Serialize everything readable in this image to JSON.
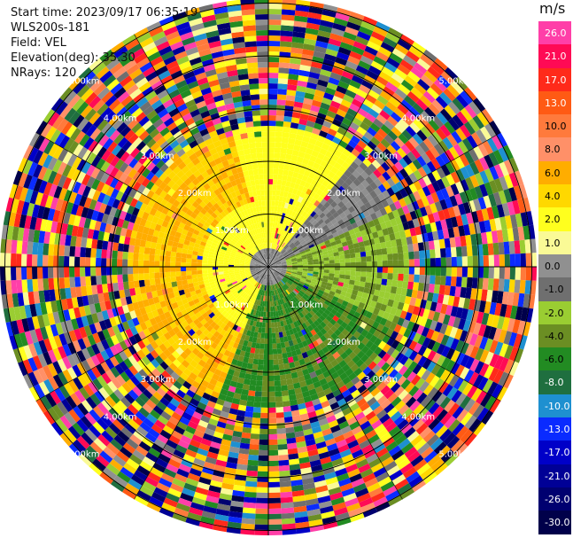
{
  "header": {
    "start_time": "Start time: 2023/09/17 06:35:19",
    "instrument": "WLS200s-181",
    "field": "Field: VEL",
    "elevation": "Elevation(deg): 35.30",
    "nrays": "NRays: 120"
  },
  "colorbar": {
    "unit": "m/s",
    "levels": [
      {
        "label": "26.0",
        "color": "#ff3fa8"
      },
      {
        "label": "21.0",
        "color": "#ff0a55"
      },
      {
        "label": "17.0",
        "color": "#ff2a1a"
      },
      {
        "label": "13.0",
        "color": "#ff5a14"
      },
      {
        "label": "10.0",
        "color": "#ff7a3c"
      },
      {
        "label": "8.0",
        "color": "#ff9068"
      },
      {
        "label": "6.0",
        "color": "#ffad00"
      },
      {
        "label": "4.0",
        "color": "#ffd800"
      },
      {
        "label": "2.0",
        "color": "#ffff1e"
      },
      {
        "label": "1.0",
        "color": "#fafa96"
      },
      {
        "label": "0.0",
        "color": "#909090"
      },
      {
        "label": "-1.0",
        "color": "#6f6f6f"
      },
      {
        "label": "-2.0",
        "color": "#9acd32"
      },
      {
        "label": "-4.0",
        "color": "#6b8e23"
      },
      {
        "label": "-6.0",
        "color": "#228b22"
      },
      {
        "label": "-8.0",
        "color": "#1f6f3f"
      },
      {
        "label": "-10.0",
        "color": "#1e90d0"
      },
      {
        "label": "-13.0",
        "color": "#0a2bff"
      },
      {
        "label": "-17.0",
        "color": "#0000c8"
      },
      {
        "label": "-21.0",
        "color": "#000096"
      },
      {
        "label": "-26.0",
        "color": "#000070"
      },
      {
        "label": "-30.0",
        "color": "#00004a"
      }
    ]
  },
  "rings": [
    {
      "label": "1.00km"
    },
    {
      "label": "2.00km"
    },
    {
      "label": "3.00km"
    },
    {
      "label": "4.00km"
    },
    {
      "label": "5.00km"
    }
  ]
}
